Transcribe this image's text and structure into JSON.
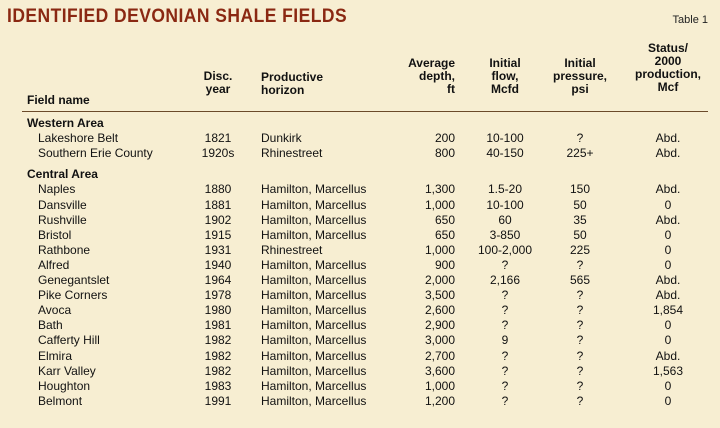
{
  "title": "Identified Devonian shale fields",
  "table_label": "Table 1",
  "headers": {
    "field_name": "Field name",
    "disc_year": "Disc.\nyear",
    "horizon": "Productive\nhorizon",
    "depth": "Average\ndepth,\nft",
    "flow": "Initial\nflow,\nMcfd",
    "pressure": "Initial\npressure,\npsi",
    "status": "Status/\n2000\nproduction,\nMcf"
  },
  "sections": [
    {
      "title": "Western Area",
      "rows": [
        {
          "name": "Lakeshore Belt",
          "year": "1821",
          "horizon": "Dunkirk",
          "depth": "200",
          "flow": "10-100",
          "pressure": "?",
          "status": "Abd."
        },
        {
          "name": "Southern Erie County",
          "year": "1920s",
          "horizon": "Rhinestreet",
          "depth": "800",
          "flow": "40-150",
          "pressure": "225+",
          "status": "Abd."
        }
      ]
    },
    {
      "title": "Central Area",
      "rows": [
        {
          "name": "Naples",
          "year": "1880",
          "horizon": "Hamilton, Marcellus",
          "depth": "1,300",
          "flow": "1.5-20",
          "pressure": "150",
          "status": "Abd."
        },
        {
          "name": "Dansville",
          "year": "1881",
          "horizon": "Hamilton, Marcellus",
          "depth": "1,000",
          "flow": "10-100",
          "pressure": "50",
          "status": "0"
        },
        {
          "name": "Rushville",
          "year": "1902",
          "horizon": "Hamilton, Marcellus",
          "depth": "650",
          "flow": "60",
          "pressure": "35",
          "status": "Abd."
        },
        {
          "name": "Bristol",
          "year": "1915",
          "horizon": "Hamilton, Marcellus",
          "depth": "650",
          "flow": "3-850",
          "pressure": "50",
          "status": "0"
        },
        {
          "name": "Rathbone",
          "year": "1931",
          "horizon": "Rhinestreet",
          "depth": "1,000",
          "flow": "100-2,000",
          "pressure": "225",
          "status": "0"
        },
        {
          "name": "Alfred",
          "year": "1940",
          "horizon": "Hamilton, Marcellus",
          "depth": "900",
          "flow": "?",
          "pressure": "?",
          "status": "0"
        },
        {
          "name": "Genegantslet",
          "year": "1964",
          "horizon": "Hamilton, Marcellus",
          "depth": "2,000",
          "flow": "2,166",
          "pressure": "565",
          "status": "Abd."
        },
        {
          "name": "Pike Corners",
          "year": "1978",
          "horizon": "Hamilton, Marcellus",
          "depth": "3,500",
          "flow": "?",
          "pressure": "?",
          "status": "Abd."
        },
        {
          "name": "Avoca",
          "year": "1980",
          "horizon": "Hamilton, Marcellus",
          "depth": "2,600",
          "flow": "?",
          "pressure": "?",
          "status": "1,854"
        },
        {
          "name": "Bath",
          "year": "1981",
          "horizon": "Hamilton, Marcellus",
          "depth": "2,900",
          "flow": "?",
          "pressure": "?",
          "status": "0"
        },
        {
          "name": "Cafferty Hill",
          "year": "1982",
          "horizon": "Hamilton, Marcellus",
          "depth": "3,000",
          "flow": "9",
          "pressure": "?",
          "status": "0"
        },
        {
          "name": "Elmira",
          "year": "1982",
          "horizon": "Hamilton, Marcellus",
          "depth": "2,700",
          "flow": "?",
          "pressure": "?",
          "status": "Abd."
        },
        {
          "name": "Karr Valley",
          "year": "1982",
          "horizon": "Hamilton, Marcellus",
          "depth": "3,600",
          "flow": "?",
          "pressure": "?",
          "status": "1,563"
        },
        {
          "name": "Houghton",
          "year": "1983",
          "horizon": "Hamilton, Marcellus",
          "depth": "1,000",
          "flow": "?",
          "pressure": "?",
          "status": "0"
        },
        {
          "name": "Belmont",
          "year": "1991",
          "horizon": "Hamilton, Marcellus",
          "depth": "1,200",
          "flow": "?",
          "pressure": "?",
          "status": "0"
        }
      ]
    }
  ]
}
